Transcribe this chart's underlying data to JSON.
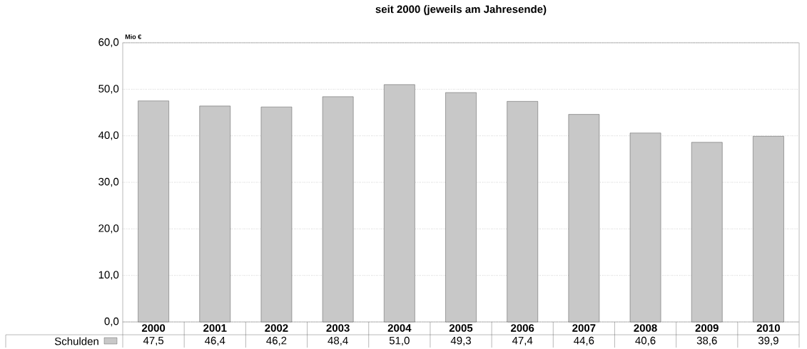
{
  "chart_data": {
    "type": "bar",
    "title": "seit 2000 (jeweils am Jahresende)",
    "ylabel": "Mio €",
    "categories": [
      "2000",
      "2001",
      "2002",
      "2003",
      "2004",
      "2005",
      "2006",
      "2007",
      "2008",
      "2009",
      "2010"
    ],
    "series": [
      {
        "name": "Schulden",
        "color": "#c8c8c8",
        "values": [
          47.5,
          46.4,
          46.2,
          48.4,
          51.0,
          49.3,
          47.4,
          44.6,
          40.6,
          38.6,
          39.9
        ],
        "value_labels": [
          "47,5",
          "46,4",
          "46,2",
          "48,4",
          "51,0",
          "49,3",
          "47,4",
          "44,6",
          "40,6",
          "38,6",
          "39,9"
        ]
      }
    ],
    "ylim": [
      0,
      60
    ],
    "yticks": [
      {
        "value": 0,
        "label": "0,0"
      },
      {
        "value": 10,
        "label": "10,0"
      },
      {
        "value": 20,
        "label": "20,0"
      },
      {
        "value": 30,
        "label": "30,0"
      },
      {
        "value": 40,
        "label": "40,0"
      },
      {
        "value": 50,
        "label": "50,0"
      },
      {
        "value": 60,
        "label": "60,0"
      }
    ],
    "grid": "y",
    "legend": "bottom left"
  }
}
